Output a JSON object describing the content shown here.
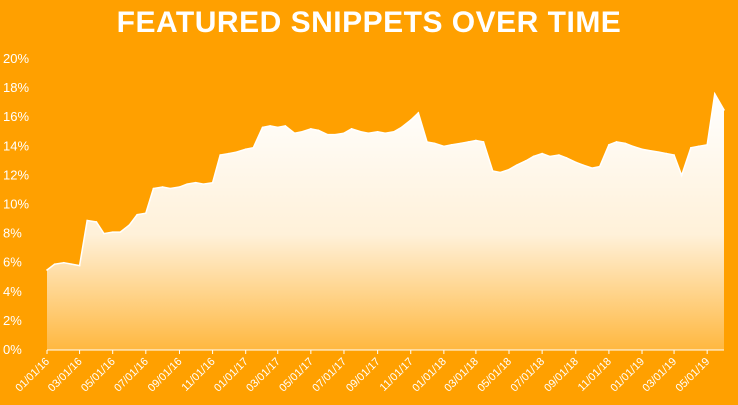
{
  "chart_data": {
    "type": "area",
    "title": "FEATURED SNIPPETS OVER TIME",
    "xlabel": "",
    "ylabel": "",
    "ylim": [
      0,
      20
    ],
    "yticks": [
      "0%",
      "2%",
      "4%",
      "6%",
      "8%",
      "10%",
      "12%",
      "14%",
      "16%",
      "18%",
      "20%"
    ],
    "xticks": [
      "01/01/16",
      "03/01/16",
      "05/01/16",
      "07/01/16",
      "09/01/16",
      "11/01/16",
      "01/01/17",
      "03/01/17",
      "05/01/17",
      "07/01/17",
      "09/01/17",
      "11/01/17",
      "01/01/18",
      "03/01/18",
      "05/01/18",
      "07/01/18",
      "09/01/18",
      "11/01/18",
      "01/01/19",
      "03/01/19",
      "05/01/19"
    ],
    "x": [
      "01/01/16",
      "01/15/16",
      "02/01/16",
      "02/15/16",
      "03/01/16",
      "03/15/16",
      "04/01/16",
      "04/15/16",
      "05/01/16",
      "05/15/16",
      "06/01/16",
      "06/15/16",
      "07/01/16",
      "07/15/16",
      "08/01/16",
      "08/15/16",
      "09/01/16",
      "09/15/16",
      "10/01/16",
      "10/15/16",
      "11/01/16",
      "11/15/16",
      "12/01/16",
      "12/15/16",
      "01/01/17",
      "01/15/17",
      "02/01/17",
      "02/15/17",
      "03/01/17",
      "03/15/17",
      "04/01/17",
      "04/15/17",
      "05/01/17",
      "05/15/17",
      "06/01/17",
      "06/15/17",
      "07/01/17",
      "07/15/17",
      "08/01/17",
      "08/15/17",
      "09/01/17",
      "09/15/17",
      "10/01/17",
      "10/15/17",
      "11/01/17",
      "11/15/17",
      "12/01/17",
      "12/15/17",
      "01/01/18",
      "01/15/18",
      "02/01/18",
      "02/15/18",
      "03/01/18",
      "03/15/18",
      "04/01/18",
      "04/15/18",
      "05/01/18",
      "05/15/18",
      "06/01/18",
      "06/15/18",
      "07/01/18",
      "07/15/18",
      "08/01/18",
      "08/15/18",
      "09/01/18",
      "09/15/18",
      "10/01/18",
      "10/15/18",
      "11/01/18",
      "11/15/18",
      "12/01/18",
      "12/15/18",
      "01/01/19",
      "01/15/19",
      "02/01/19",
      "02/15/19",
      "03/01/19",
      "03/15/19",
      "04/01/19",
      "04/15/19",
      "05/01/19",
      "05/15/19",
      "06/01/19"
    ],
    "series": [
      {
        "values": [
          5.5,
          5.9,
          6.0,
          5.9,
          5.8,
          8.9,
          8.8,
          8.0,
          8.1,
          8.1,
          8.6,
          9.3,
          9.4,
          11.1,
          11.2,
          11.1,
          11.2,
          11.4,
          11.5,
          11.4,
          11.5,
          13.4,
          13.5,
          13.6,
          13.8,
          13.9,
          15.3,
          15.4,
          15.3,
          15.4,
          14.9,
          15.0,
          15.2,
          15.1,
          14.8,
          14.8,
          14.9,
          15.2,
          15.0,
          14.9,
          15.0,
          14.9,
          15.0,
          15.3,
          15.8,
          16.3,
          14.3,
          14.2,
          14.0,
          14.1,
          14.2,
          14.3,
          14.4,
          14.3,
          12.3,
          12.2,
          12.4,
          12.7,
          13.0,
          13.3,
          13.5,
          13.3,
          13.4,
          13.2,
          12.9,
          12.7,
          12.5,
          12.6,
          14.1,
          14.3,
          14.2,
          14.0,
          13.8,
          13.7,
          13.6,
          13.5,
          13.4,
          12.0,
          13.9,
          14.0,
          14.1,
          17.6,
          16.5
        ]
      }
    ],
    "grid": false,
    "legend": "none",
    "colors": {
      "background": "#FFA000",
      "fill_top": "#FFFFFF",
      "text": "#FFFFFF"
    }
  }
}
